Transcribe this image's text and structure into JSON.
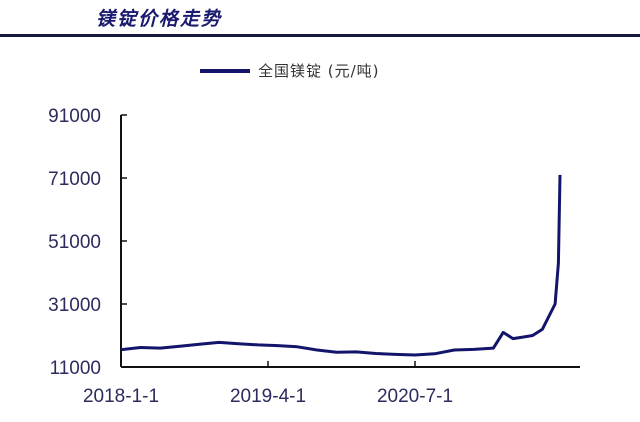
{
  "header": {
    "title": "镁锭价格走势"
  },
  "legend": {
    "label": "全国镁锭 (元/吨)",
    "color": "#13156b"
  },
  "chart_data": {
    "type": "line",
    "title": "镁锭价格走势",
    "xlabel": "",
    "ylabel": "",
    "ylim": [
      11000,
      91000
    ],
    "yticks": [
      11000,
      31000,
      51000,
      71000,
      91000
    ],
    "xticks": [
      "2018-1-1",
      "2019-4-1",
      "2020-7-1"
    ],
    "grid": false,
    "legend_position": "top",
    "series": [
      {
        "name": "全国镁锭 (元/吨)",
        "color": "#13156b",
        "x": [
          "2018-01",
          "2018-03",
          "2018-05",
          "2018-07",
          "2018-09",
          "2018-11",
          "2019-01",
          "2019-03",
          "2019-05",
          "2019-07",
          "2019-09",
          "2019-11",
          "2020-01",
          "2020-03",
          "2020-05",
          "2020-07",
          "2020-09",
          "2020-11",
          "2021-01",
          "2021-03",
          "2021-04",
          "2021-05",
          "2021-06",
          "2021-07",
          "2021-08",
          "2021-09-10",
          "2021-09-20",
          "2021-09-25"
        ],
        "values": [
          16500,
          17200,
          17000,
          17600,
          18200,
          18800,
          18400,
          18000,
          17800,
          17400,
          16400,
          15700,
          15800,
          15300,
          15000,
          14800,
          15200,
          16400,
          16600,
          17000,
          22000,
          20000,
          20500,
          21000,
          23000,
          31000,
          44000,
          72000
        ]
      }
    ]
  }
}
